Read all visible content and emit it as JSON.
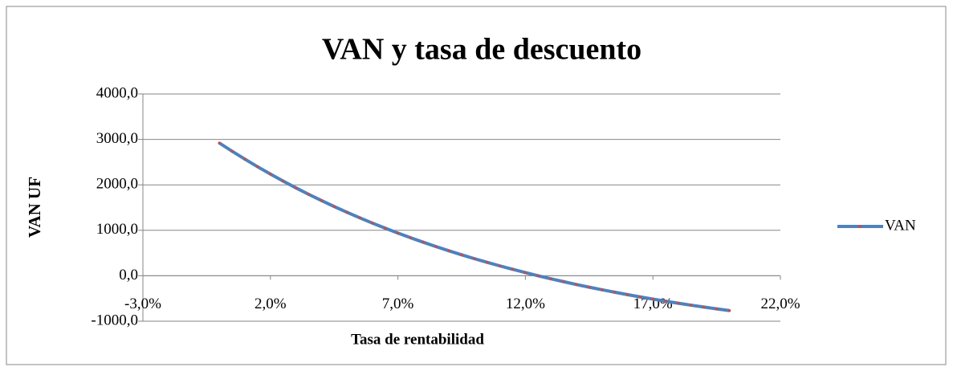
{
  "chart_data": {
    "type": "line",
    "title": "VAN y tasa de descuento",
    "x_label": "Tasa de rentabilidad",
    "y_label": "VAN UF",
    "x": [
      0,
      0.5,
      1,
      1.5,
      2,
      2.5,
      3,
      3.5,
      4,
      4.5,
      5,
      5.5,
      6,
      6.5,
      7,
      7.5,
      8,
      8.5,
      9,
      9.5,
      10,
      10.5,
      11,
      11.5,
      12,
      12.5,
      13,
      13.5,
      14,
      14.5,
      15,
      15.5,
      16,
      16.5,
      17,
      17.5,
      18,
      18.5,
      19,
      19.5,
      20
    ],
    "series": [
      {
        "name": "VAN",
        "color": "#4f81bd",
        "marker_color": "#c0504d",
        "values": [
          2920,
          2739,
          2565,
          2398,
          2237,
          2083,
          1934,
          1792,
          1655,
          1524,
          1397,
          1276,
          1159,
          1047,
          939,
          836,
          737,
          641,
          549,
          461,
          376,
          295,
          217,
          142,
          70,
          0,
          -66,
          -130,
          -192,
          -251,
          -308,
          -362,
          -415,
          -465,
          -513,
          -560,
          -605,
          -648,
          -689,
          -728,
          -766
        ]
      }
    ],
    "xlim": [
      -3,
      22
    ],
    "xticks": [
      {
        "value": -3,
        "label": "-3,0%"
      },
      {
        "value": 2,
        "label": "2,0%"
      },
      {
        "value": 7,
        "label": "7,0%"
      },
      {
        "value": 12,
        "label": "12,0%"
      },
      {
        "value": 17,
        "label": "17,0%"
      },
      {
        "value": 22,
        "label": "22,0%"
      }
    ],
    "ylim": [
      -1000,
      4000
    ],
    "yticks": [
      {
        "value": -1000,
        "label": "-1000,0"
      },
      {
        "value": 0,
        "label": "0,0"
      },
      {
        "value": 1000,
        "label": "1000,0"
      },
      {
        "value": 2000,
        "label": "2000,0"
      },
      {
        "value": 3000,
        "label": "3000,0"
      },
      {
        "value": 4000,
        "label": "4000,0"
      }
    ],
    "grid": true,
    "legend": "right"
  }
}
